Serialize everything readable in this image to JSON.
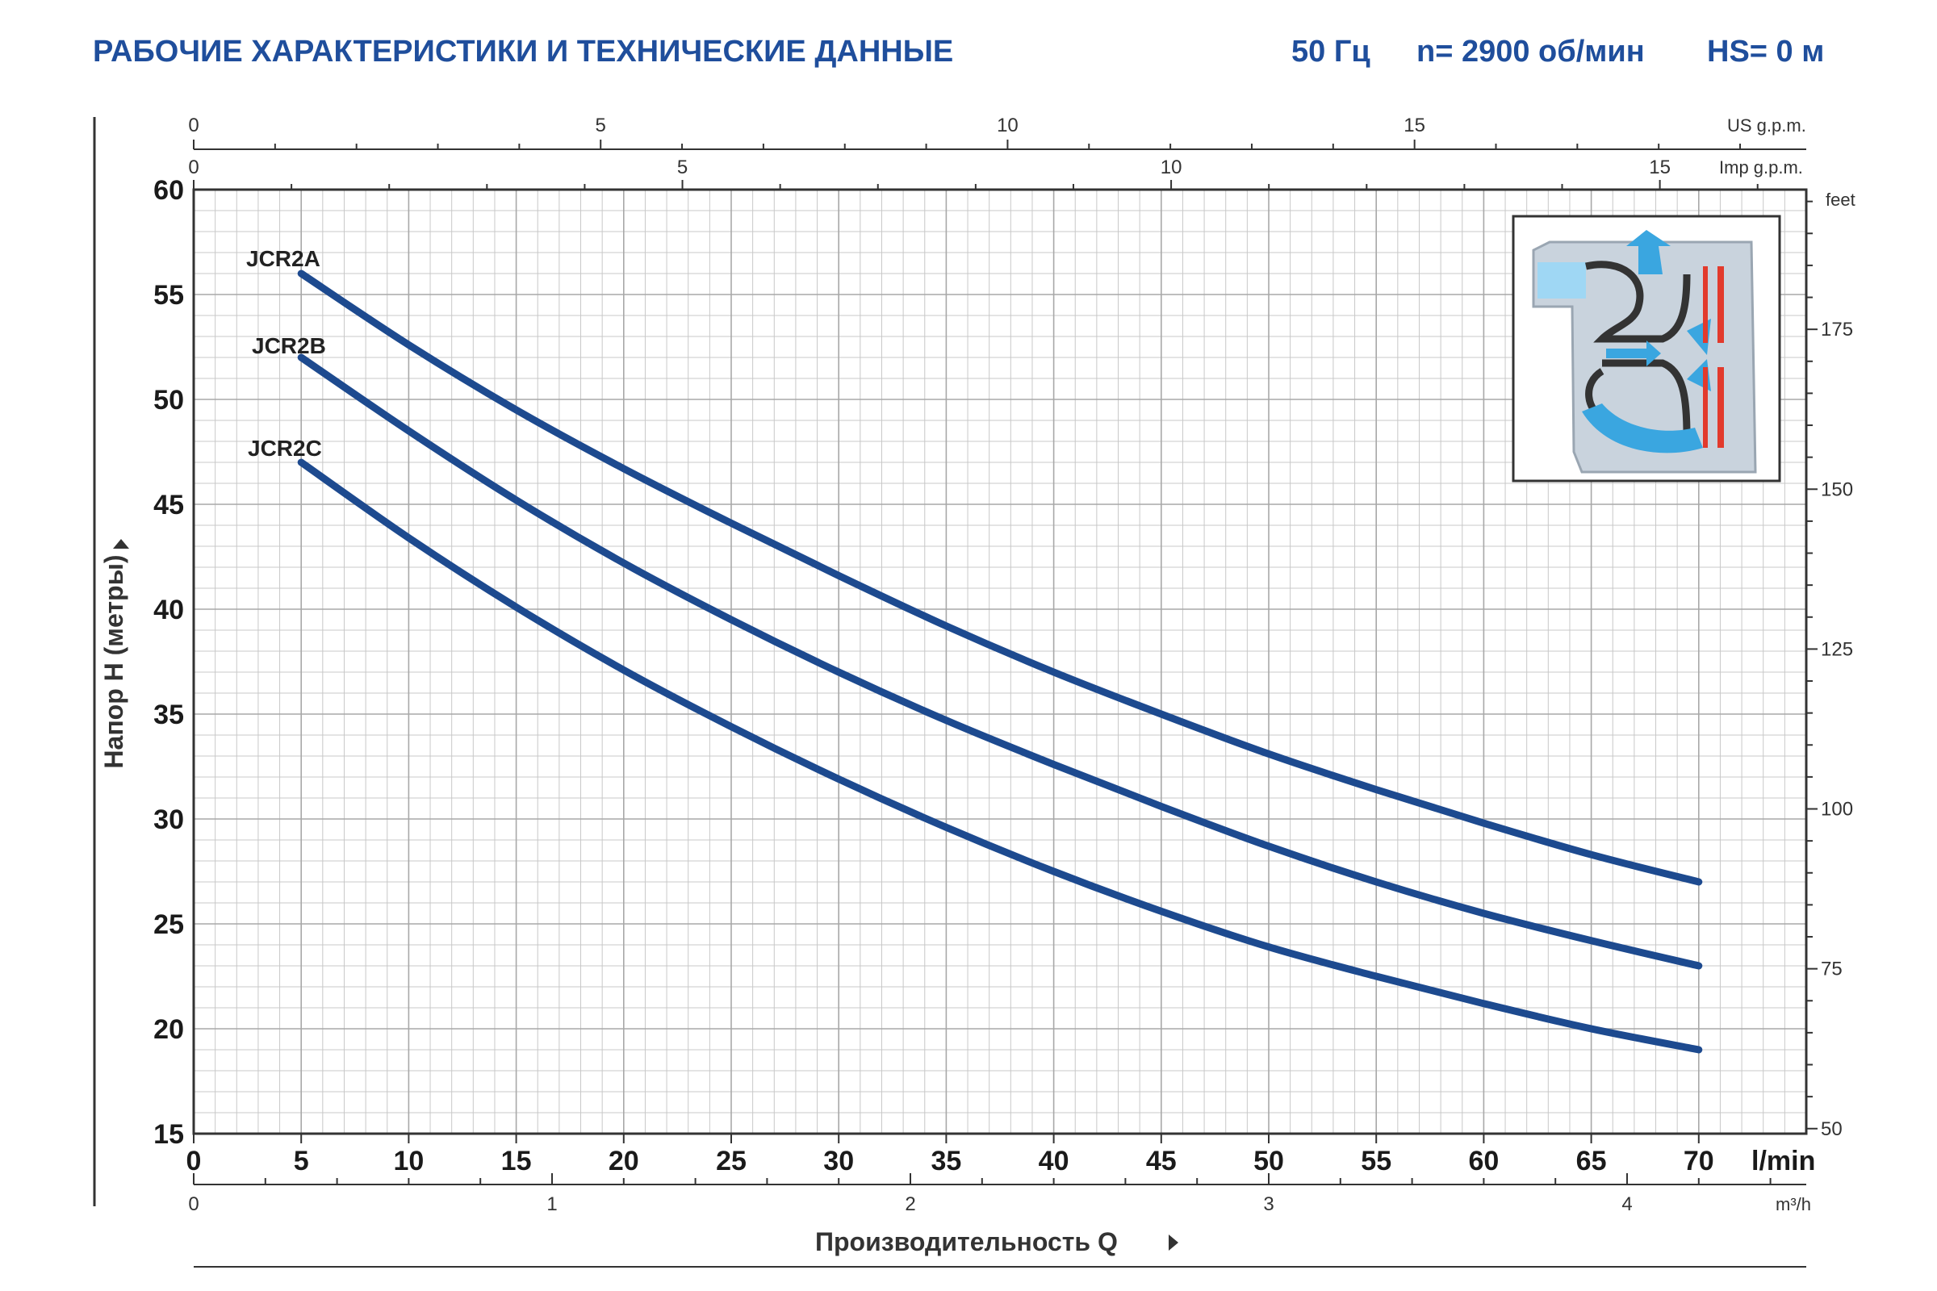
{
  "header": {
    "title": "РАБОЧИЕ ХАРАКТЕРИСТИКИ И ТЕХНИЧЕСКИЕ ДАННЫЕ",
    "frequency": "50 Гц",
    "speed": "n= 2900 об/мин",
    "suction": "HS= 0 м"
  },
  "colors": {
    "header": "#1f4e9c",
    "curve": "#1d4a8f",
    "grid": "#c8c8c8"
  },
  "chart_data": {
    "type": "line",
    "xlabel": "Производительность Q",
    "ylabel": "Напор H (метры)",
    "x_unit": "l/min",
    "xlim": [
      0,
      75
    ],
    "ylim": [
      15,
      60
    ],
    "grid": true,
    "x_ticks": [
      "0",
      "5",
      "10",
      "15",
      "20",
      "25",
      "30",
      "35",
      "40",
      "45",
      "50",
      "55",
      "60",
      "65",
      "70"
    ],
    "y_ticks": [
      "15",
      "20",
      "25",
      "30",
      "35",
      "40",
      "45",
      "50",
      "55",
      "60"
    ],
    "secondary_axes": {
      "us_gpm": {
        "unit": "US g.p.m.",
        "ticks": [
          "0",
          "5",
          "10",
          "15"
        ]
      },
      "imp_gpm": {
        "unit": "Imp g.p.m.",
        "ticks": [
          "0",
          "5",
          "10",
          "15"
        ]
      },
      "m3h": {
        "unit": "m³/h",
        "ticks": [
          "0",
          "1",
          "2",
          "3",
          "4"
        ]
      },
      "feet": {
        "unit": "feet",
        "ticks": [
          "50",
          "75",
          "100",
          "125",
          "150",
          "175"
        ]
      }
    },
    "series": [
      {
        "name": "JCR2A",
        "x": [
          5,
          10,
          15,
          20,
          25,
          30,
          35,
          40,
          45,
          50,
          55,
          60,
          65,
          70
        ],
        "y": [
          56,
          52.6,
          49.5,
          46.7,
          44.1,
          41.6,
          39.2,
          37.0,
          35.0,
          33.1,
          31.4,
          29.8,
          28.3,
          27.0
        ]
      },
      {
        "name": "JCR2B",
        "x": [
          5,
          10,
          15,
          20,
          25,
          30,
          35,
          40,
          45,
          50,
          55,
          60,
          65,
          70
        ],
        "y": [
          52,
          48.5,
          45.2,
          42.2,
          39.5,
          37.0,
          34.7,
          32.6,
          30.6,
          28.7,
          27.0,
          25.5,
          24.2,
          23.0
        ]
      },
      {
        "name": "JCR2C",
        "x": [
          5,
          10,
          15,
          20,
          25,
          30,
          35,
          40,
          45,
          50,
          55,
          60,
          65,
          70
        ],
        "y": [
          47,
          43.4,
          40.1,
          37.1,
          34.4,
          31.9,
          29.6,
          27.5,
          25.6,
          23.9,
          22.5,
          21.2,
          20.0,
          19.0
        ]
      }
    ]
  }
}
